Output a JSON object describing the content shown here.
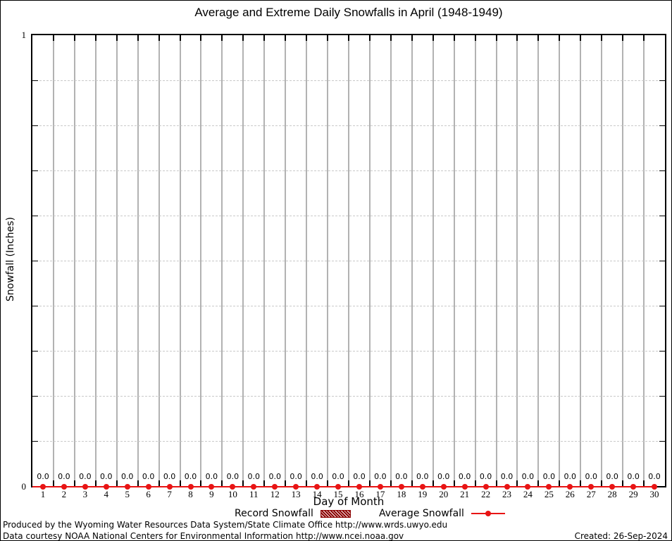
{
  "chart_data": {
    "type": "line",
    "title": "Average and Extreme Daily Snowfalls in April (1948-1949)",
    "xlabel": "Day of Month",
    "ylabel": "Snowfall (Inches)",
    "ylim": [
      0,
      1
    ],
    "ytick_labels": {
      "top": "1",
      "bottom": "0"
    },
    "grid": {
      "vertical": "solid gray at day-cell boundaries",
      "horizontal": "dashed light-gray every 0.1",
      "minor_y_step": 0.1
    },
    "legend_position": "bottom-center",
    "categories": [
      "1",
      "2",
      "3",
      "4",
      "5",
      "6",
      "7",
      "8",
      "9",
      "10",
      "11",
      "12",
      "13",
      "14",
      "15",
      "16",
      "17",
      "18",
      "19",
      "20",
      "21",
      "22",
      "23",
      "24",
      "25",
      "26",
      "27",
      "28",
      "29",
      "30"
    ],
    "series": [
      {
        "name": "Record Snowfall",
        "type": "bar",
        "color": "#8b0000",
        "values": [
          0,
          0,
          0,
          0,
          0,
          0,
          0,
          0,
          0,
          0,
          0,
          0,
          0,
          0,
          0,
          0,
          0,
          0,
          0,
          0,
          0,
          0,
          0,
          0,
          0,
          0,
          0,
          0,
          0,
          0
        ]
      },
      {
        "name": "Average Snowfall",
        "type": "line",
        "color": "#e81414",
        "values": [
          0.0,
          0.0,
          0.0,
          0.0,
          0.0,
          0.0,
          0.0,
          0.0,
          0.0,
          0.0,
          0.0,
          0.0,
          0.0,
          0.0,
          0.0,
          0.0,
          0.0,
          0.0,
          0.0,
          0.0,
          0.0,
          0.0,
          0.0,
          0.0,
          0.0,
          0.0,
          0.0,
          0.0,
          0.0,
          0.0
        ]
      }
    ],
    "point_labels": [
      "0.0",
      "0.0",
      "0.0",
      "0.0",
      "0.0",
      "0.0",
      "0.0",
      "0.0",
      "0.0",
      "0.0",
      "0.0",
      "0.0",
      "0.0",
      "0.0",
      "0.0",
      "0.0",
      "0.0",
      "0.0",
      "0.0",
      "0.0",
      "0.0",
      "0.0",
      "0.0",
      "0.0",
      "0.0",
      "0.0",
      "0.0",
      "0.0",
      "0.0",
      "0.0"
    ]
  },
  "colors": {
    "record_snowfall": "#8b0000",
    "average_snowfall": "#e81414",
    "grid_vertical": "#b2b2b2",
    "grid_horizontal_dashed": "#c9c9c9",
    "plot_border": "#000000"
  },
  "footer": {
    "line1": "Produced by the Wyoming Water Resources Data System/State Climate Office http://www.wrds.uwyo.edu",
    "line2": "Data courtesy NOAA National Centers for Environmental Information http://www.ncei.noaa.gov",
    "created": "Created: 26-Sep-2024"
  }
}
